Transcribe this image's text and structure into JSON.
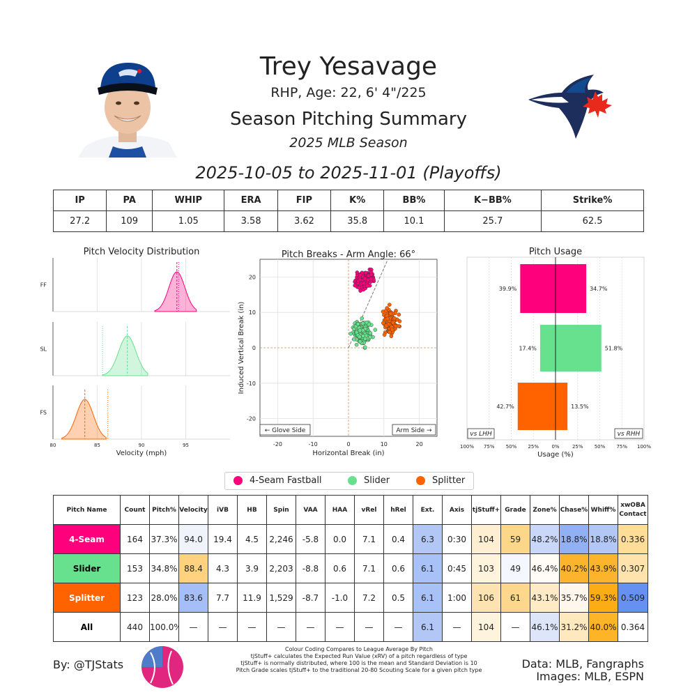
{
  "header": {
    "player_name": "Trey Yesavage",
    "player_info": "RHP, Age: 22, 6' 4\"/225",
    "report_title": "Season Pitching Summary",
    "season": "2025 MLB Season",
    "date_range": "2025-10-05 to 2025-11-01 (Playoffs)"
  },
  "stats": {
    "headers": [
      "IP",
      "PA",
      "WHIP",
      "ERA",
      "FIP",
      "K%",
      "BB%",
      "K−BB%",
      "Strike%"
    ],
    "values": [
      "27.2",
      "109",
      "1.05",
      "3.58",
      "3.62",
      "35.8",
      "10.1",
      "25.7",
      "62.5"
    ]
  },
  "colors": {
    "ff": "#FF007D",
    "sl": "#67E18D",
    "fs": "#FF6300"
  },
  "chart_data": [
    {
      "type": "area",
      "title": "Pitch Velocity Distribution",
      "xlabel": "Velocity (mph)",
      "xlim": [
        80,
        100
      ],
      "xticks": [
        "80",
        "85",
        "90",
        "95"
      ],
      "series": [
        {
          "name": "FF",
          "mean": 94.0,
          "league_mean": 94.2,
          "range": [
            91.5,
            96.2
          ]
        },
        {
          "name": "SL",
          "mean": 88.4,
          "league_mean": 85.6,
          "range": [
            85.6,
            90.7
          ]
        },
        {
          "name": "FS",
          "mean": 83.6,
          "league_mean": 86.2,
          "range": [
            81.0,
            86.0
          ]
        }
      ]
    },
    {
      "type": "scatter",
      "title": "Pitch Breaks - Arm Angle: 66°",
      "xlabel": "Horizontal Break (in)",
      "ylabel": "Induced Vertical Break (in)",
      "xlim": [
        -25,
        25
      ],
      "ylim": [
        -25,
        25
      ],
      "xticks": [
        "-20",
        "-10",
        "0",
        "10",
        "20"
      ],
      "yticks": [
        "20",
        "10",
        "0",
        "-10",
        "-20"
      ],
      "arm_angle": 66,
      "left_label": "← Glove Side",
      "right_label": "Arm Side →",
      "series": [
        {
          "name": "4-Seam Fastball",
          "count": 164,
          "mean_hb": 4.5,
          "mean_ivb": 19.4,
          "sd_hb": 1.6,
          "sd_ivb": 1.6
        },
        {
          "name": "Slider",
          "count": 153,
          "mean_hb": 3.9,
          "mean_ivb": 4.3,
          "sd_hb": 1.8,
          "sd_ivb": 2.2
        },
        {
          "name": "Splitter",
          "count": 123,
          "mean_hb": 11.9,
          "mean_ivb": 7.7,
          "sd_hb": 1.5,
          "sd_ivb": 2.5
        }
      ]
    },
    {
      "type": "bar",
      "title": "Pitch Usage",
      "xlabel": "Usage (%)",
      "xticks": [
        "100%",
        "75%",
        "50%",
        "25%",
        "0%",
        "25%",
        "50%",
        "75%",
        "100%"
      ],
      "vs_lhh_label": "vs LHH",
      "vs_rhh_label": "vs RHH",
      "categories": [
        "4-Seam",
        "Slider",
        "Splitter"
      ],
      "series": [
        {
          "name": "vs LHH",
          "values": [
            39.9,
            17.4,
            42.7
          ],
          "labels": [
            "39.9%",
            "17.4%",
            "42.7%"
          ]
        },
        {
          "name": "vs RHH",
          "values": [
            34.7,
            51.8,
            13.5
          ],
          "labels": [
            "34.7%",
            "51.8%",
            "13.5%"
          ]
        }
      ]
    }
  ],
  "legend": [
    "4-Seam Fastball",
    "Slider",
    "Splitter"
  ],
  "pitch_table": {
    "headers": [
      "Pitch Name",
      "Count",
      "Pitch%",
      "Velocity",
      "iVB",
      "HB",
      "Spin",
      "VAA",
      "HAA",
      "vRel",
      "hRel",
      "Ext.",
      "Axis",
      "tjStuff+",
      "Grade",
      "Zone%",
      "Chase%",
      "Whiff%",
      "xwOBA Contact"
    ],
    "rows": [
      {
        "cells": [
          "4-Seam",
          "164",
          "37.3%",
          "94.0",
          "19.4",
          "4.5",
          "2,246",
          "-5.8",
          "0.0",
          "7.1",
          "0.4",
          "6.3",
          "0:30",
          "104",
          "59",
          "48.2%",
          "18.8%",
          "18.8%",
          "0.336"
        ]
      },
      {
        "cells": [
          "Slider",
          "153",
          "34.8%",
          "88.4",
          "4.3",
          "3.9",
          "2,203",
          "-8.8",
          "0.6",
          "7.1",
          "0.6",
          "6.1",
          "0:45",
          "103",
          "49",
          "46.4%",
          "40.2%",
          "43.9%",
          "0.307"
        ]
      },
      {
        "cells": [
          "Splitter",
          "123",
          "28.0%",
          "83.6",
          "7.7",
          "11.9",
          "1,529",
          "-8.7",
          "-1.0",
          "7.2",
          "0.5",
          "6.1",
          "1:00",
          "106",
          "61",
          "43.1%",
          "35.7%",
          "59.3%",
          "0.509"
        ]
      },
      {
        "cells": [
          "All",
          "440",
          "100.0%",
          "—",
          "—",
          "—",
          "—",
          "—",
          "—",
          "—",
          "—",
          "6.1",
          "—",
          "104",
          "—",
          "46.1%",
          "31.2%",
          "40.0%",
          "0.364"
        ]
      }
    ],
    "name_colors": [
      "#FF007D",
      "#67E18D",
      "#FF6300",
      "#FFFFFF"
    ],
    "name_text_colors": [
      "#FFFFFF",
      "#000000",
      "#FFFFFF",
      "#000000"
    ],
    "cell_colors": [
      [
        "",
        "",
        "",
        "#F0F3FA",
        "",
        "",
        "",
        "",
        "",
        "",
        "",
        "#B3C7F7",
        "",
        "#FEEFD2",
        "#FDD789",
        "#C9D7F8",
        "#92B0F4",
        "#B3C7F7",
        "#FDDD98"
      ],
      [
        "",
        "",
        "",
        "#FFD27F",
        "",
        "",
        "",
        "",
        "",
        "",
        "",
        "#A8C1F7",
        "",
        "#FEF3DC",
        "#F4F7FD",
        "#FFFBF5",
        "#FDB42D",
        "#FDB42D",
        "#FEE3AD"
      ],
      [
        "",
        "",
        "",
        "#A5BEF7",
        "",
        "",
        "",
        "",
        "",
        "",
        "",
        "#A8C1F7",
        "",
        "#FDE3B0",
        "#FDD78B",
        "#FEEBC5",
        "#FFF7EB",
        "#FCAC14",
        "#6791F1"
      ],
      [
        "",
        "",
        "",
        "",
        "",
        "",
        "",
        "",
        "",
        "",
        "",
        "#B3C7F7",
        "",
        "#FEF3DC",
        "",
        "#DCE5FA",
        "#FEE9BF",
        "#FDB426",
        "#FFFFFF"
      ]
    ]
  },
  "footer": {
    "author": "By: @TJStats",
    "notes": [
      "Colour Coding Compares to League Average By Pitch",
      "tjStuff+ calculates the Expected Run Value (xRV) of a pitch regardless of type",
      "tjStuff+ is normally distributed, where 100 is the mean and Standard Deviation is 10",
      "Pitch Grade scales tjStuff+ to the traditional 20-80 Scouting Scale for a given pitch type"
    ],
    "source_line1": "Data: MLB, Fangraphs",
    "source_line2": "Images: MLB, ESPN"
  }
}
